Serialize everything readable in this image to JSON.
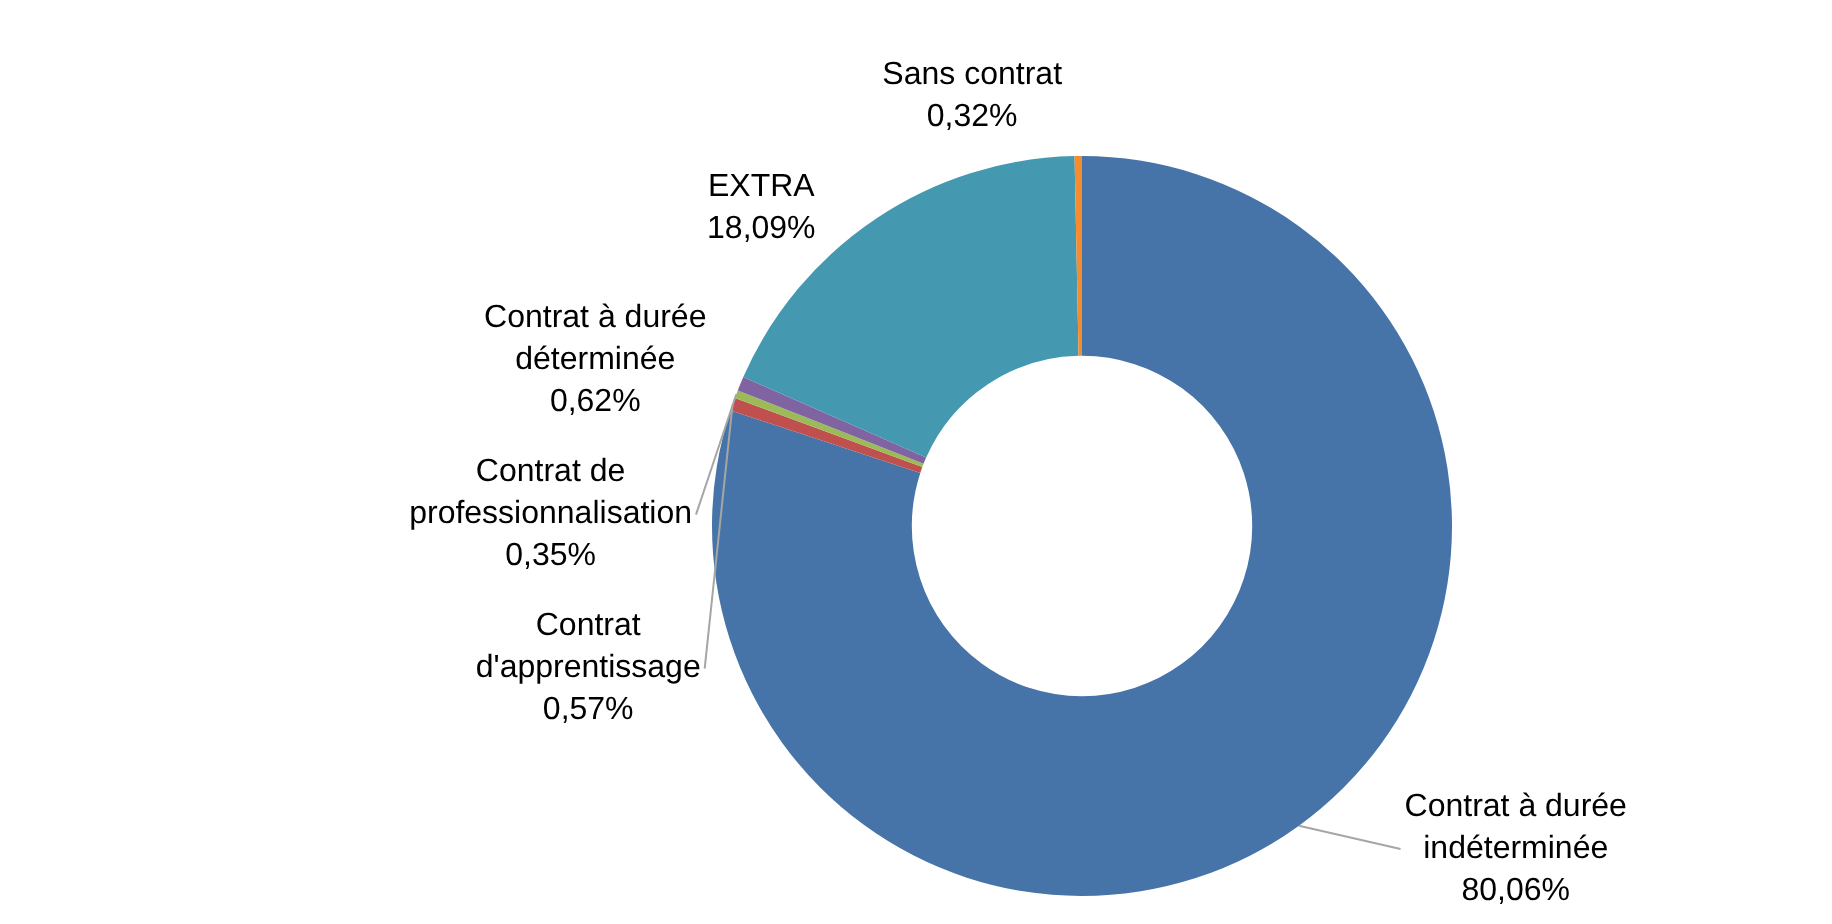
{
  "chart_data": {
    "type": "donut",
    "categories": [
      "Contrat à durée indéterminée",
      "Contrat d'apprentissage",
      "Contrat de professionnalisation",
      "Contrat à durée déterminée",
      "EXTRA",
      "Sans contrat"
    ],
    "values": [
      80.06,
      0.57,
      0.35,
      0.62,
      18.09,
      0.32
    ],
    "colors": [
      "#4673a8",
      "#c0504d",
      "#9bbb59",
      "#8064a2",
      "#4499b0",
      "#f58c2e"
    ],
    "value_labels": [
      "80,06%",
      "0,57%",
      "0,35%",
      "0,62%",
      "18,09%",
      "0,32%"
    ],
    "legend": false
  }
}
